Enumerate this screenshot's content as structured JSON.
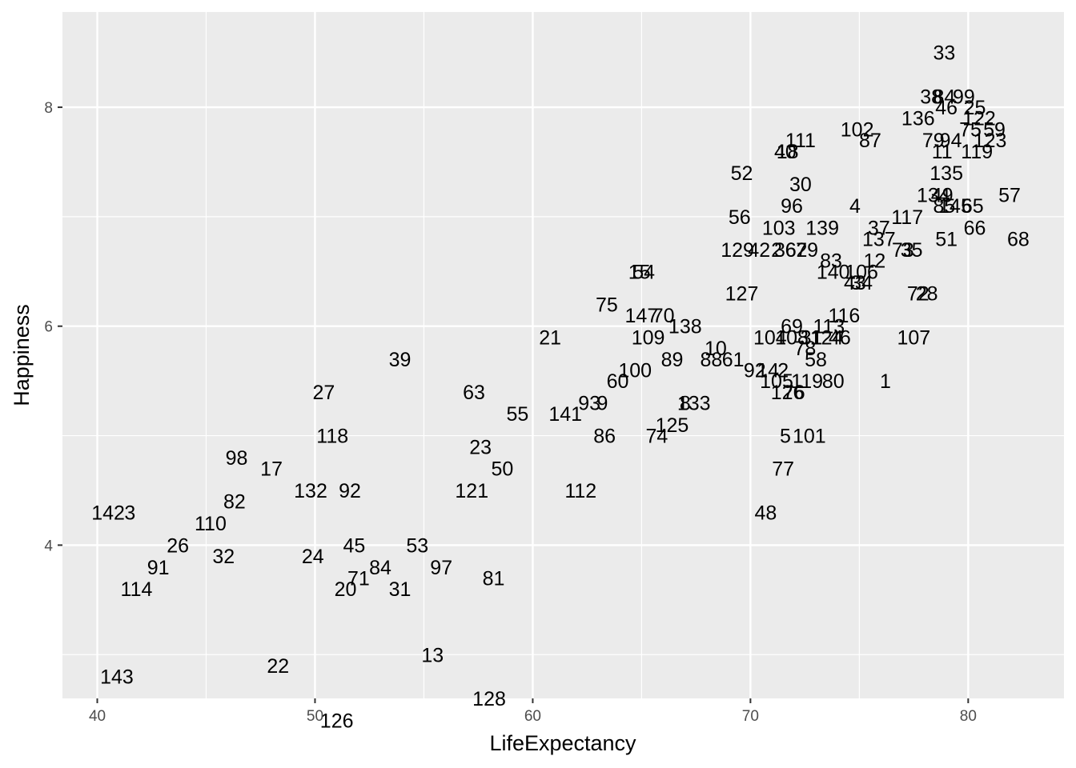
{
  "chart_data": {
    "type": "scatter",
    "title": "",
    "xlabel": "LifeExpectancy",
    "ylabel": "Happiness",
    "xlim": [
      38.4,
      84.4
    ],
    "ylim": [
      2.6,
      8.87
    ],
    "x_ticks": [
      40,
      50,
      60,
      70,
      80
    ],
    "y_ticks": [
      4,
      6,
      8
    ],
    "grid": true,
    "legend": "none",
    "panel_color": "#ebebeb",
    "grid_color": "#ffffff",
    "points": [
      {
        "label": "33",
        "x": 78.9,
        "y": 8.5
      },
      {
        "label": "38",
        "x": 78.3,
        "y": 8.1
      },
      {
        "label": "84",
        "x": 78.9,
        "y": 8.1
      },
      {
        "label": "99",
        "x": 79.8,
        "y": 8.1
      },
      {
        "label": "46",
        "x": 79.0,
        "y": 8.0
      },
      {
        "label": "25",
        "x": 80.3,
        "y": 8.0
      },
      {
        "label": "136",
        "x": 77.7,
        "y": 7.9
      },
      {
        "label": "122",
        "x": 80.5,
        "y": 7.9
      },
      {
        "label": "102",
        "x": 74.9,
        "y": 7.8
      },
      {
        "label": "111",
        "x": 72.3,
        "y": 7.7
      },
      {
        "label": "87",
        "x": 75.5,
        "y": 7.7
      },
      {
        "label": "59",
        "x": 81.2,
        "y": 7.8
      },
      {
        "label": "79",
        "x": 78.4,
        "y": 7.7
      },
      {
        "label": "94",
        "x": 79.2,
        "y": 7.7
      },
      {
        "label": "75",
        "x": 80.1,
        "y": 7.8
      },
      {
        "label": "123",
        "x": 81.0,
        "y": 7.7
      },
      {
        "label": "40",
        "x": 71.6,
        "y": 7.6
      },
      {
        "label": "18",
        "x": 71.7,
        "y": 7.6
      },
      {
        "label": "11",
        "x": 78.8,
        "y": 7.6
      },
      {
        "label": "119",
        "x": 80.4,
        "y": 7.6
      },
      {
        "label": "52",
        "x": 69.6,
        "y": 7.4
      },
      {
        "label": "135",
        "x": 79.0,
        "y": 7.4
      },
      {
        "label": "30",
        "x": 72.3,
        "y": 7.3
      },
      {
        "label": "134",
        "x": 78.4,
        "y": 7.2
      },
      {
        "label": "49",
        "x": 78.8,
        "y": 7.2
      },
      {
        "label": "57",
        "x": 81.9,
        "y": 7.2
      },
      {
        "label": "96",
        "x": 71.9,
        "y": 7.1
      },
      {
        "label": "4",
        "x": 74.8,
        "y": 7.1
      },
      {
        "label": "85",
        "x": 78.9,
        "y": 7.1
      },
      {
        "label": "145",
        "x": 79.4,
        "y": 7.1
      },
      {
        "label": "65",
        "x": 80.2,
        "y": 7.1
      },
      {
        "label": "56",
        "x": 69.5,
        "y": 7.0
      },
      {
        "label": "117",
        "x": 77.2,
        "y": 7.0
      },
      {
        "label": "103",
        "x": 71.3,
        "y": 6.9
      },
      {
        "label": "139",
        "x": 73.3,
        "y": 6.9
      },
      {
        "label": "37",
        "x": 75.9,
        "y": 6.9
      },
      {
        "label": "66",
        "x": 80.3,
        "y": 6.9
      },
      {
        "label": "137",
        "x": 75.9,
        "y": 6.8
      },
      {
        "label": "51",
        "x": 79.0,
        "y": 6.8
      },
      {
        "label": "68",
        "x": 82.3,
        "y": 6.8
      },
      {
        "label": "129",
        "x": 69.4,
        "y": 6.7
      },
      {
        "label": "42",
        "x": 70.4,
        "y": 6.7
      },
      {
        "label": "2",
        "x": 71.2,
        "y": 6.7
      },
      {
        "label": "36",
        "x": 71.6,
        "y": 6.7
      },
      {
        "label": "62",
        "x": 72.1,
        "y": 6.7
      },
      {
        "label": "79",
        "x": 72.6,
        "y": 6.7
      },
      {
        "label": "73",
        "x": 77.0,
        "y": 6.7
      },
      {
        "label": "35",
        "x": 77.4,
        "y": 6.7
      },
      {
        "label": "83",
        "x": 73.7,
        "y": 6.6
      },
      {
        "label": "12",
        "x": 75.7,
        "y": 6.6
      },
      {
        "label": "15",
        "x": 64.9,
        "y": 6.5
      },
      {
        "label": "54",
        "x": 65.1,
        "y": 6.5
      },
      {
        "label": "140",
        "x": 73.8,
        "y": 6.5
      },
      {
        "label": "106",
        "x": 75.1,
        "y": 6.5
      },
      {
        "label": "43",
        "x": 74.8,
        "y": 6.4
      },
      {
        "label": "34",
        "x": 75.1,
        "y": 6.4
      },
      {
        "label": "127",
        "x": 69.6,
        "y": 6.3
      },
      {
        "label": "72",
        "x": 77.7,
        "y": 6.3
      },
      {
        "label": "28",
        "x": 78.1,
        "y": 6.3
      },
      {
        "label": "75",
        "x": 63.4,
        "y": 6.2
      },
      {
        "label": "147",
        "x": 65.0,
        "y": 6.1
      },
      {
        "label": "70",
        "x": 66.0,
        "y": 6.1
      },
      {
        "label": "116",
        "x": 74.3,
        "y": 6.1
      },
      {
        "label": "138",
        "x": 67.0,
        "y": 6.0
      },
      {
        "label": "69",
        "x": 71.9,
        "y": 6.0
      },
      {
        "label": "113",
        "x": 73.6,
        "y": 6.0
      },
      {
        "label": "21",
        "x": 60.8,
        "y": 5.9
      },
      {
        "label": "109",
        "x": 65.3,
        "y": 5.9
      },
      {
        "label": "104",
        "x": 70.9,
        "y": 5.9
      },
      {
        "label": "108",
        "x": 71.9,
        "y": 5.9
      },
      {
        "label": "31",
        "x": 72.8,
        "y": 5.9
      },
      {
        "label": "124",
        "x": 73.5,
        "y": 5.9
      },
      {
        "label": "46",
        "x": 74.1,
        "y": 5.9
      },
      {
        "label": "107",
        "x": 77.5,
        "y": 5.9
      },
      {
        "label": "10",
        "x": 68.4,
        "y": 5.8
      },
      {
        "label": "78",
        "x": 72.5,
        "y": 5.8
      },
      {
        "label": "39",
        "x": 53.9,
        "y": 5.7
      },
      {
        "label": "88",
        "x": 68.2,
        "y": 5.7
      },
      {
        "label": "61",
        "x": 69.2,
        "y": 5.7
      },
      {
        "label": "89",
        "x": 66.4,
        "y": 5.7
      },
      {
        "label": "58",
        "x": 73.0,
        "y": 5.7
      },
      {
        "label": "100",
        "x": 64.7,
        "y": 5.6
      },
      {
        "label": "92",
        "x": 70.2,
        "y": 5.6
      },
      {
        "label": "14",
        "x": 70.8,
        "y": 5.6
      },
      {
        "label": "2",
        "x": 71.5,
        "y": 5.6
      },
      {
        "label": "60",
        "x": 63.9,
        "y": 5.5
      },
      {
        "label": "105",
        "x": 71.2,
        "y": 5.5
      },
      {
        "label": "119",
        "x": 72.6,
        "y": 5.5
      },
      {
        "label": "80",
        "x": 73.8,
        "y": 5.5
      },
      {
        "label": "1",
        "x": 76.2,
        "y": 5.5
      },
      {
        "label": "27",
        "x": 50.4,
        "y": 5.4
      },
      {
        "label": "63",
        "x": 57.3,
        "y": 5.4
      },
      {
        "label": "126",
        "x": 71.7,
        "y": 5.4
      },
      {
        "label": "76",
        "x": 72.0,
        "y": 5.4
      },
      {
        "label": "93",
        "x": 62.6,
        "y": 5.3
      },
      {
        "label": "9",
        "x": 63.2,
        "y": 5.3
      },
      {
        "label": "8",
        "x": 67.0,
        "y": 5.3
      },
      {
        "label": "133",
        "x": 67.4,
        "y": 5.3
      },
      {
        "label": "55",
        "x": 59.3,
        "y": 5.2
      },
      {
        "label": "141",
        "x": 61.5,
        "y": 5.2
      },
      {
        "label": "125",
        "x": 66.4,
        "y": 5.1
      },
      {
        "label": "118",
        "x": 50.8,
        "y": 5.0
      },
      {
        "label": "86",
        "x": 63.3,
        "y": 5.0
      },
      {
        "label": "74",
        "x": 65.7,
        "y": 5.0
      },
      {
        "label": "5",
        "x": 71.6,
        "y": 5.0
      },
      {
        "label": "101",
        "x": 72.7,
        "y": 5.0
      },
      {
        "label": "98",
        "x": 46.4,
        "y": 4.8
      },
      {
        "label": "23",
        "x": 57.6,
        "y": 4.9
      },
      {
        "label": "17",
        "x": 48.0,
        "y": 4.7
      },
      {
        "label": "50",
        "x": 58.6,
        "y": 4.7
      },
      {
        "label": "77",
        "x": 71.5,
        "y": 4.7
      },
      {
        "label": "132",
        "x": 49.8,
        "y": 4.5
      },
      {
        "label": "92",
        "x": 51.6,
        "y": 4.5
      },
      {
        "label": "121",
        "x": 57.2,
        "y": 4.5
      },
      {
        "label": "112",
        "x": 62.2,
        "y": 4.5
      },
      {
        "label": "82",
        "x": 46.3,
        "y": 4.4
      },
      {
        "label": "142",
        "x": 40.5,
        "y": 4.3
      },
      {
        "label": "3",
        "x": 41.5,
        "y": 4.3
      },
      {
        "label": "48",
        "x": 70.7,
        "y": 4.3
      },
      {
        "label": "110",
        "x": 45.2,
        "y": 4.2
      },
      {
        "label": "26",
        "x": 43.7,
        "y": 4.0
      },
      {
        "label": "45",
        "x": 51.8,
        "y": 4.0
      },
      {
        "label": "53",
        "x": 54.7,
        "y": 4.0
      },
      {
        "label": "32",
        "x": 45.8,
        "y": 3.9
      },
      {
        "label": "24",
        "x": 49.9,
        "y": 3.9
      },
      {
        "label": "91",
        "x": 42.8,
        "y": 3.8
      },
      {
        "label": "84",
        "x": 53.0,
        "y": 3.8
      },
      {
        "label": "97",
        "x": 55.8,
        "y": 3.8
      },
      {
        "label": "71",
        "x": 52.0,
        "y": 3.7
      },
      {
        "label": "81",
        "x": 58.2,
        "y": 3.7
      },
      {
        "label": "114",
        "x": 41.8,
        "y": 3.6
      },
      {
        "label": "20",
        "x": 51.4,
        "y": 3.6
      },
      {
        "label": "31",
        "x": 53.9,
        "y": 3.6
      },
      {
        "label": "13",
        "x": 55.4,
        "y": 3.0
      },
      {
        "label": "22",
        "x": 48.3,
        "y": 2.9
      },
      {
        "label": "143",
        "x": 40.9,
        "y": 2.8
      },
      {
        "label": "128",
        "x": 58.0,
        "y": 2.6
      },
      {
        "label": "126",
        "x": 51.0,
        "y": 2.4
      }
    ]
  }
}
